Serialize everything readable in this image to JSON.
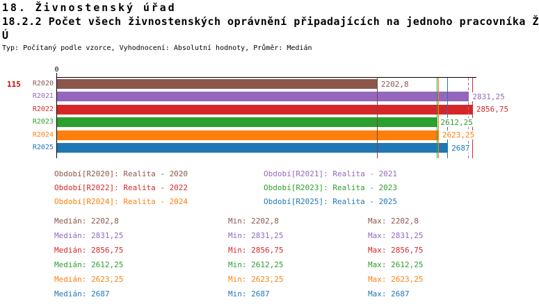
{
  "header": {
    "title": "18. Živnostenský úřad",
    "subtitle_line1": "18.2.2 Počet všech živnostenských oprávnění připadajících na jednoho pracovníka Ž",
    "subtitle_line2": "Ú",
    "meta": "Typ: Počítaný podle vzorce, Vyhodnocení: Absolutní hodnoty, Průměr: Medián"
  },
  "chart_data": {
    "type": "bar",
    "orientation": "horizontal",
    "row_id": "115",
    "row_id_color": "#d40000",
    "zero_label": "0",
    "categories": [
      "R2020",
      "R2021",
      "R2022",
      "R2023",
      "R2024",
      "R2025"
    ],
    "values": [
      2202.8,
      2831.25,
      2856.75,
      2612.25,
      2623.25,
      2687
    ],
    "value_labels": [
      "2202,8",
      "2831,25",
      "2856,75",
      "2612,25",
      "2623,25",
      "2687"
    ],
    "colors": [
      "#8c564b",
      "#9467bd",
      "#d62728",
      "#2ca02c",
      "#ff7f0e",
      "#1f77b4"
    ],
    "marker_colors": [
      "#7a453c",
      "#9467bd",
      "#d62728",
      "#2ca02c",
      "#ff7f0e",
      "#1f77b4"
    ],
    "marker_dashed": [
      false,
      true,
      false,
      false,
      false,
      false
    ],
    "xlim": [
      0,
      2882
    ],
    "axis_color": "#000000",
    "grid": false,
    "legend_position": "below"
  },
  "legend": {
    "items": [
      {
        "label": "Období[R2020]: Realita - 2020",
        "color": "#8c564b"
      },
      {
        "label": "Období[R2021]: Realita - 2021",
        "color": "#9467bd"
      },
      {
        "label": "Období[R2022]: Realita - 2022",
        "color": "#d62728"
      },
      {
        "label": "Období[R2023]: Realita - 2023",
        "color": "#2ca02c"
      },
      {
        "label": "Období[R2024]: Realita - 2024",
        "color": "#ff7f0e"
      },
      {
        "label": "Období[R2025]: Realita - 2025",
        "color": "#1f77b4"
      }
    ]
  },
  "stats": {
    "labels": {
      "median": "Medián:",
      "min": "Min:",
      "max": "Max:"
    },
    "rows": [
      {
        "median": "2202,8",
        "min": "2202,8",
        "max": "2202,8",
        "color": "#8c564b"
      },
      {
        "median": "2831,25",
        "min": "2831,25",
        "max": "2831,25",
        "color": "#9467bd"
      },
      {
        "median": "2856,75",
        "min": "2856,75",
        "max": "2856,75",
        "color": "#d62728"
      },
      {
        "median": "2612,25",
        "min": "2612,25",
        "max": "2612,25",
        "color": "#2ca02c"
      },
      {
        "median": "2623,25",
        "min": "2623,25",
        "max": "2623,25",
        "color": "#ff7f0e"
      },
      {
        "median": "2687",
        "min": "2687",
        "max": "2687",
        "color": "#1f77b4"
      }
    ]
  }
}
